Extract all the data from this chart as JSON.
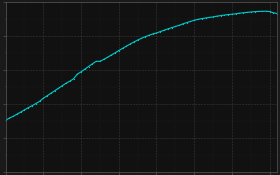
{
  "background_color": "#1a1a1a",
  "plot_bg_color": "#111111",
  "grid_color": "#444444",
  "line_color": "#00cccc",
  "marker_color": "#00cccc",
  "years": [
    1950,
    1951,
    1952,
    1953,
    1954,
    1955,
    1956,
    1957,
    1958,
    1959,
    1960,
    1961,
    1962,
    1963,
    1964,
    1965,
    1966,
    1967,
    1968,
    1969,
    1970,
    1971,
    1972,
    1973,
    1974,
    1975,
    1976,
    1977,
    1978,
    1979,
    1980,
    1981,
    1982,
    1983,
    1984,
    1985,
    1986,
    1987,
    1988,
    1989,
    1990,
    1991,
    1992,
    1993,
    1994,
    1995,
    1996,
    1997,
    1998,
    1999,
    2000,
    2001,
    2002,
    2003,
    2004,
    2005,
    2006,
    2007,
    2008,
    2009,
    2010,
    2011,
    2012,
    2013,
    2014,
    2015,
    2016,
    2017,
    2018,
    2019,
    2020,
    2021,
    2022
  ],
  "population": [
    7554050,
    7869247,
    8128206,
    8438016,
    8749151,
    9077643,
    9390381,
    9690250,
    9999578,
    10330462,
    10792202,
    11148680,
    11519456,
    11883523,
    12257117,
    12628156,
    12992763,
    13296400,
    13648600,
    14335000,
    14675964,
    15072083,
    15461623,
    15852095,
    16223012,
    16223050,
    16508190,
    16813100,
    17135000,
    17468100,
    17805000,
    18135000,
    18457000,
    18770000,
    19069000,
    19354000,
    19614000,
    19848000,
    20054000,
    20262000,
    20398838,
    20605831,
    20802622,
    20995416,
    21177874,
    21357431,
    21525433,
    21742815,
    21928591,
    22092387,
    22276672,
    22405568,
    22520776,
    22604550,
    22689122,
    22770383,
    22876527,
    22958360,
    23037031,
    23119772,
    23162123,
    23224912,
    23315822,
    23373517,
    23433753,
    23492074,
    23539588,
    23571227,
    23588932,
    23603121,
    23561236,
    23375314,
    23264640
  ],
  "xlim": [
    1950,
    2022
  ],
  "ylim": [
    0,
    25000000
  ],
  "figsize": [
    2.8,
    1.75
  ],
  "dpi": 100,
  "x_major_tick": 10,
  "x_minor_tick": 5,
  "y_major_tick": 5000000,
  "y_minor_tick": 2500000,
  "spine_color": "#555555",
  "linewidth": 0.8,
  "markersize": 1.8
}
